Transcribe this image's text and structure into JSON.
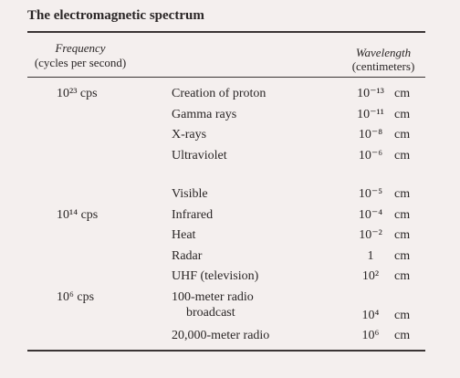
{
  "header": {
    "title": "The electromagnetic spectrum",
    "frequency": {
      "label": "Frequency",
      "unit": "(cycles per second)"
    },
    "wavelength": {
      "label": "Wavelength",
      "unit": "(centimeters)"
    }
  },
  "table": {
    "groups": [
      {
        "rows": [
          {
            "frequency": "10²³ cps",
            "name": [
              "Creation of proton"
            ],
            "wavelength": "10⁻¹³",
            "unit": "cm"
          },
          {
            "name": [
              "Gamma rays"
            ],
            "wavelength": "10⁻¹¹",
            "unit": "cm"
          },
          {
            "name": [
              "X-rays"
            ],
            "wavelength": "10⁻⁸",
            "unit": "cm"
          },
          {
            "name": [
              "Ultraviolet"
            ],
            "wavelength": "10⁻⁶",
            "unit": "cm"
          }
        ]
      },
      {
        "rows": [
          {
            "name": [
              "Visible"
            ],
            "wavelength": "10⁻⁵",
            "unit": "cm"
          },
          {
            "frequency": "10¹⁴ cps",
            "name": [
              "Infrared"
            ],
            "wavelength": "10⁻⁴",
            "unit": "cm"
          },
          {
            "name": [
              "Heat"
            ],
            "wavelength": "10⁻²",
            "unit": "cm"
          },
          {
            "name": [
              "Radar"
            ],
            "wavelength": "1",
            "unit": "cm"
          },
          {
            "name": [
              "UHF (television)"
            ],
            "wavelength": "10²",
            "unit": "cm"
          },
          {
            "frequency": "10⁶ cps",
            "name": [
              "100-meter radio",
              "broadcast"
            ],
            "wavelength": "10⁴",
            "unit": "cm"
          },
          {
            "name": [
              "20,000-meter radio"
            ],
            "wavelength": "10⁶",
            "unit": "cm"
          }
        ]
      }
    ]
  }
}
